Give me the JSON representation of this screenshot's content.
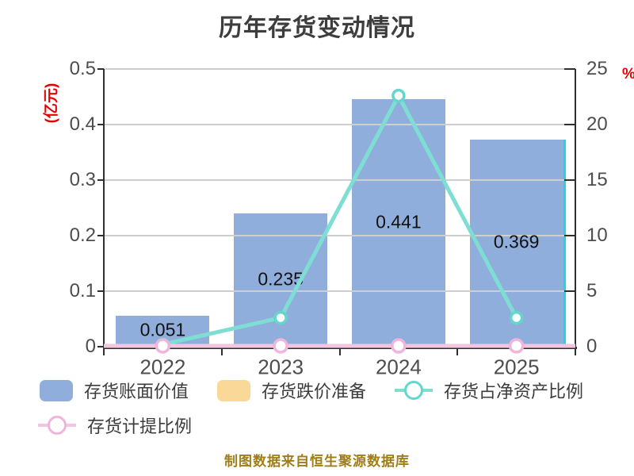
{
  "title": "历年存货变动情况",
  "footer": "制图数据来自恒生聚源数据库",
  "left_axis": {
    "unit": "(亿元)",
    "labels": [
      "0.5",
      "0.4",
      "0.3",
      "0.2",
      "0.1",
      "0"
    ],
    "min": 0,
    "max": 0.5
  },
  "right_axis": {
    "unit": "%",
    "labels": [
      "25",
      "20",
      "15",
      "10",
      "5",
      "0"
    ],
    "min": 0,
    "max": 25
  },
  "chart_data": {
    "type": "bar+line",
    "categories": [
      "2022",
      "2023",
      "2024",
      "2025"
    ],
    "series": [
      {
        "name": "存货账面价值",
        "type": "bar",
        "axis": "left",
        "color": "#8FAEDC",
        "values": [
          0.051,
          0.235,
          0.441,
          0.369
        ],
        "labels": [
          "0.051",
          "0.235",
          "0.441",
          "0.369"
        ]
      },
      {
        "name": "存货跌价准备",
        "type": "bar",
        "axis": "left",
        "color": "#FAD998",
        "values": [
          0,
          0,
          0,
          0
        ],
        "labels": []
      },
      {
        "name": "存货占净资产比例",
        "type": "line",
        "axis": "right",
        "color": "#7EDED4",
        "marker_ring": "#62D8CC",
        "values": [
          0.2,
          2.6,
          22.6,
          2.6
        ]
      },
      {
        "name": "存货计提比例",
        "type": "line",
        "axis": "right",
        "color": "#F2C6E0",
        "marker_ring": "#EFB5DA",
        "values": [
          0,
          0,
          0,
          0
        ]
      }
    ],
    "left_ylim": [
      0,
      0.5
    ],
    "right_ylim": [
      0,
      25
    ],
    "grid": "horizontal-on",
    "legend_position": "bottom",
    "last_bar_right_edge_color": "#19D9D9"
  },
  "legend": {
    "items": [
      {
        "label": "存货账面价值",
        "marker": "bar",
        "color": "#8FAEDC"
      },
      {
        "label": "存货跌价准备",
        "marker": "bar",
        "color": "#FAD998"
      },
      {
        "label": "存货占净资产比例",
        "marker": "line",
        "color": "#7EDED4",
        "ring": "#62D8CC"
      },
      {
        "label": "存货计提比例",
        "marker": "line",
        "color": "#F2C6E0",
        "ring": "#EFB5DA"
      }
    ]
  },
  "colors": {
    "title_text": "#3D3D3D",
    "axis_text": "#4D4D4D",
    "axis_unit_red": "#E60000",
    "grid_line": "#CFCFCF",
    "axis_line": "#2F2F2F",
    "footer_gold": "#9E7E1A",
    "background": "#FFFFFF"
  }
}
